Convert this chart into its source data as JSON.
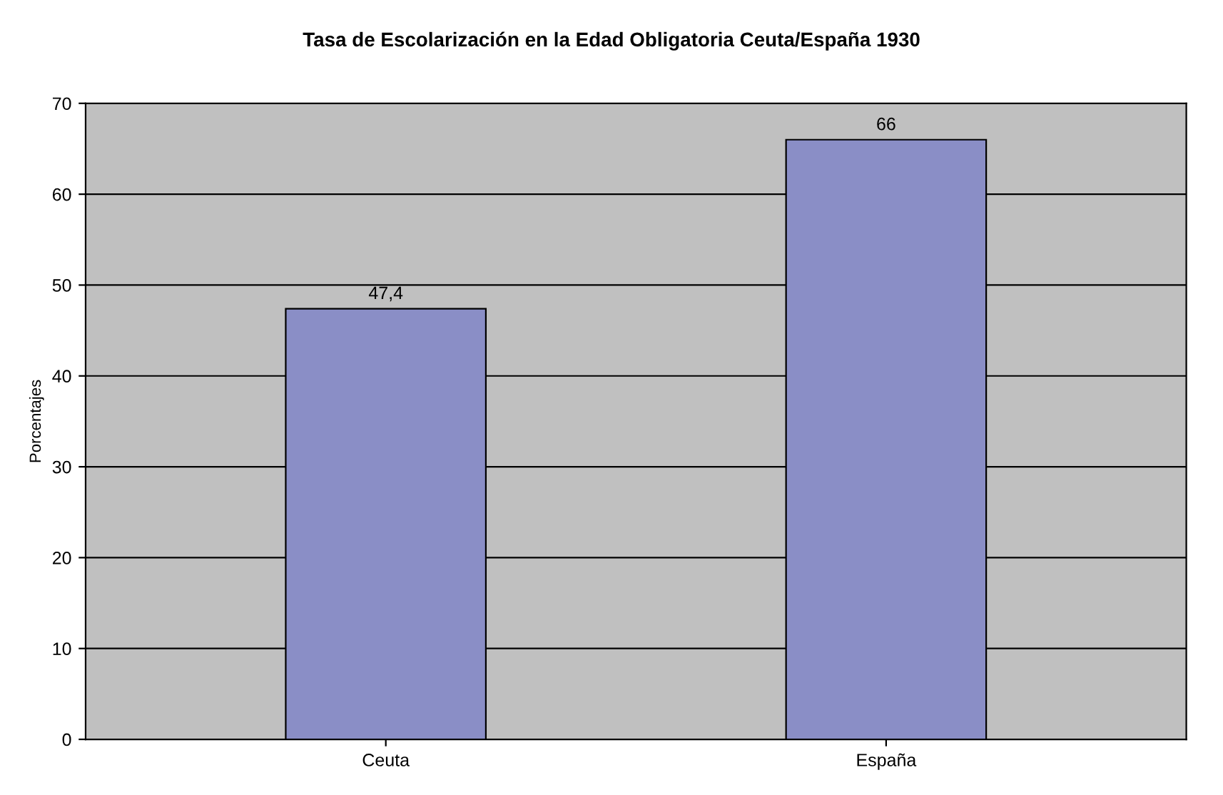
{
  "chart_data": {
    "type": "bar",
    "title": "Tasa de Escolarización en la Edad Obligatoria Ceuta/España 1930",
    "ylabel": "Porcentajes",
    "categories": [
      "Ceuta",
      "España"
    ],
    "values": [
      47.4,
      66
    ],
    "value_labels": [
      "47,4",
      "66"
    ],
    "color": "#8a8ec6",
    "ylim": [
      0,
      70
    ],
    "yticks": [
      0,
      10,
      20,
      30,
      40,
      50,
      60,
      70
    ],
    "grid": "y"
  }
}
